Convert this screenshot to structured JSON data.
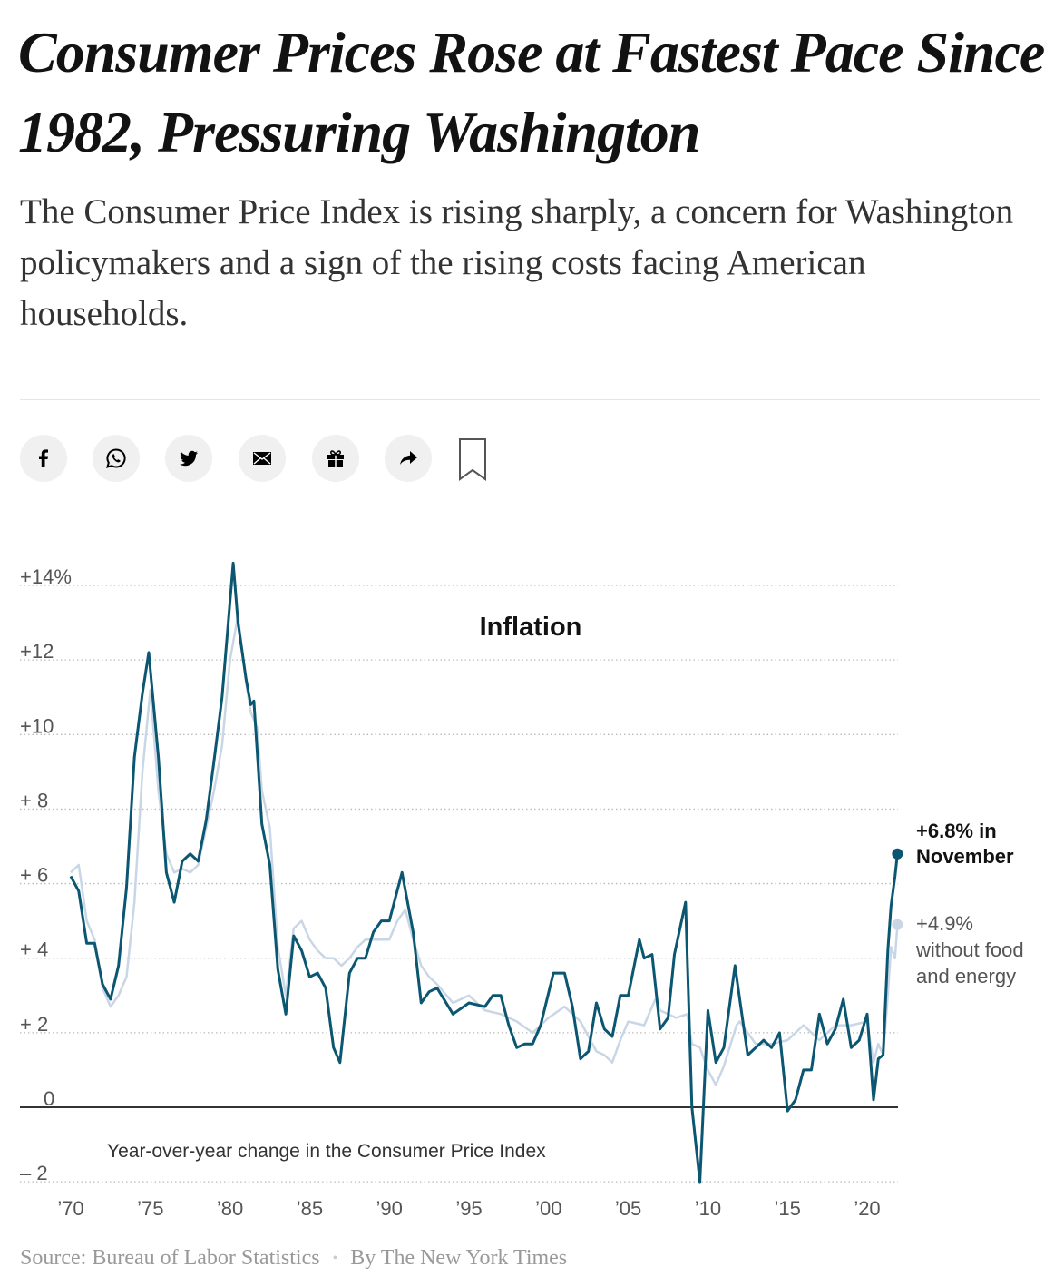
{
  "article": {
    "headline": "Consumer Prices Rose at Fastest Pace Since 1982, Pressuring Washington",
    "summary": "The Consumer Price Index is rising sharply, a concern for Washington policymakers and a sign of the rising costs facing American households."
  },
  "share_bar": {
    "icons": [
      "facebook-icon",
      "whatsapp-icon",
      "twitter-icon",
      "email-icon",
      "gift-icon",
      "share-icon",
      "bookmark-icon"
    ]
  },
  "chart_data": {
    "type": "line",
    "title": "Inflation",
    "annotation": "Year-over-year change in the Consumer Price Index",
    "ylim": [
      -2,
      14
    ],
    "xlim": [
      1970,
      2021.9
    ],
    "y_ticks": [
      {
        "value": 14,
        "label": "+14%"
      },
      {
        "value": 12,
        "label": "+12"
      },
      {
        "value": 10,
        "label": "+10"
      },
      {
        "value": 8,
        "label": "+ 8"
      },
      {
        "value": 6,
        "label": "+ 6"
      },
      {
        "value": 4,
        "label": "+ 4"
      },
      {
        "value": 2,
        "label": "+ 2"
      },
      {
        "value": 0,
        "label": "0"
      },
      {
        "value": -2,
        "label": "– 2"
      }
    ],
    "x_ticks": [
      {
        "value": 1970,
        "label": "’70"
      },
      {
        "value": 1975,
        "label": "’75"
      },
      {
        "value": 1980,
        "label": "’80"
      },
      {
        "value": 1985,
        "label": "’85"
      },
      {
        "value": 1990,
        "label": "’90"
      },
      {
        "value": 1995,
        "label": "’95"
      },
      {
        "value": 2000,
        "label": "’00"
      },
      {
        "value": 2005,
        "label": "’05"
      },
      {
        "value": 2010,
        "label": "’10"
      },
      {
        "value": 2015,
        "label": "’15"
      },
      {
        "value": 2020,
        "label": "’20"
      }
    ],
    "grid": "horizontal dotted",
    "colors": {
      "headline": "#0b5670",
      "core": "#c9d6e6",
      "grid": "#bbbbbb"
    },
    "series": [
      {
        "key": "headline",
        "label_value": "+6.8% in",
        "label_text": "November",
        "x": [
          1970,
          1970.5,
          1971,
          1971.5,
          1972,
          1972.5,
          1973,
          1973.5,
          1974,
          1974.5,
          1974.9,
          1975.5,
          1976,
          1976.5,
          1977,
          1977.5,
          1978,
          1978.5,
          1979,
          1979.5,
          1980.2,
          1980.5,
          1981,
          1981.3,
          1981.5,
          1982,
          1982.5,
          1983,
          1983.5,
          1984,
          1984.5,
          1985,
          1985.5,
          1986,
          1986.5,
          1986.9,
          1987.5,
          1988,
          1988.5,
          1989,
          1989.5,
          1990,
          1990.8,
          1991.5,
          1992,
          1992.5,
          1993,
          1994,
          1995,
          1996,
          1996.5,
          1997,
          1997.5,
          1998,
          1998.5,
          1999,
          1999.5,
          2000.3,
          2000.5,
          2001,
          2001.5,
          2002,
          2002.5,
          2003,
          2003.5,
          2004,
          2004.5,
          2005,
          2005.7,
          2006,
          2006.5,
          2007,
          2007.5,
          2007.9,
          2008.6,
          2009,
          2009.5,
          2010,
          2010.5,
          2011,
          2011.7,
          2012,
          2012.5,
          2013,
          2013.5,
          2014,
          2014.5,
          2015,
          2015.5,
          2016,
          2016.5,
          2017,
          2017.5,
          2018,
          2018.5,
          2019,
          2019.5,
          2020,
          2020.4,
          2020.7,
          2021,
          2021.3,
          2021.5,
          2021.75,
          2021.9
        ],
        "y": [
          6.2,
          5.8,
          4.4,
          4.4,
          3.3,
          2.9,
          3.8,
          5.9,
          9.4,
          11.1,
          12.2,
          9.4,
          6.3,
          5.5,
          6.6,
          6.8,
          6.6,
          7.7,
          9.3,
          11.0,
          14.6,
          13.0,
          11.5,
          10.8,
          10.9,
          7.6,
          6.5,
          3.7,
          2.5,
          4.6,
          4.2,
          3.5,
          3.6,
          3.2,
          1.6,
          1.2,
          3.6,
          4.0,
          4.0,
          4.7,
          5.0,
          5.0,
          6.3,
          4.7,
          2.8,
          3.1,
          3.2,
          2.5,
          2.8,
          2.7,
          3.0,
          3.0,
          2.2,
          1.6,
          1.7,
          1.7,
          2.2,
          3.6,
          3.6,
          3.6,
          2.7,
          1.3,
          1.5,
          2.8,
          2.1,
          1.9,
          3.0,
          3.0,
          4.5,
          4.0,
          4.1,
          2.1,
          2.4,
          4.1,
          5.5,
          0.0,
          -2.0,
          2.6,
          1.2,
          1.6,
          3.8,
          2.9,
          1.4,
          1.6,
          1.8,
          1.6,
          2.0,
          -0.1,
          0.2,
          1.0,
          1.0,
          2.5,
          1.7,
          2.1,
          2.9,
          1.6,
          1.8,
          2.5,
          0.2,
          1.3,
          1.4,
          4.2,
          5.4,
          6.2,
          6.8
        ]
      },
      {
        "key": "core",
        "label_value": "+4.9%",
        "label_text": "without food and energy",
        "x": [
          1970,
          1970.5,
          1971,
          1971.5,
          1972,
          1972.5,
          1973,
          1973.5,
          1974,
          1974.5,
          1975,
          1975.5,
          1976,
          1976.5,
          1977,
          1977.5,
          1978,
          1978.5,
          1979,
          1979.5,
          1980,
          1980.5,
          1981,
          1981.3,
          1981.7,
          1982,
          1982.5,
          1983,
          1983.5,
          1984,
          1984.5,
          1985,
          1985.5,
          1986,
          1986.5,
          1987,
          1987.5,
          1988,
          1988.5,
          1989,
          1989.5,
          1990,
          1990.5,
          1991,
          1991.5,
          1992,
          1992.5,
          1993,
          1994,
          1995,
          1996,
          1997,
          1998,
          1999,
          2000,
          2001,
          2002,
          2003,
          2003.5,
          2004,
          2004.5,
          2005,
          2006,
          2006.7,
          2007,
          2008,
          2008.7,
          2009,
          2009.5,
          2010,
          2010.5,
          2011,
          2011.8,
          2012,
          2013,
          2014,
          2015,
          2016,
          2017,
          2018,
          2019,
          2020,
          2020.4,
          2020.7,
          2021,
          2021.3,
          2021.5,
          2021.75,
          2021.9
        ],
        "y": [
          6.3,
          6.5,
          5.0,
          4.5,
          3.2,
          2.7,
          3.0,
          3.5,
          5.5,
          9.0,
          11.2,
          8.5,
          6.8,
          6.3,
          6.4,
          6.3,
          6.5,
          7.5,
          8.5,
          9.7,
          12.0,
          13.2,
          11.4,
          10.6,
          10.2,
          8.5,
          7.5,
          4.3,
          3.0,
          4.8,
          5.0,
          4.5,
          4.2,
          4.0,
          4.0,
          3.8,
          4.0,
          4.3,
          4.5,
          4.5,
          4.5,
          4.5,
          5.0,
          5.3,
          4.5,
          3.8,
          3.5,
          3.3,
          2.8,
          3.0,
          2.6,
          2.5,
          2.3,
          2.0,
          2.4,
          2.7,
          2.3,
          1.5,
          1.4,
          1.2,
          1.8,
          2.3,
          2.2,
          2.9,
          2.6,
          2.4,
          2.5,
          1.7,
          1.6,
          1.0,
          0.6,
          1.1,
          2.2,
          2.3,
          1.7,
          1.7,
          1.8,
          2.2,
          1.8,
          2.2,
          2.2,
          2.3,
          1.2,
          1.7,
          1.4,
          3.0,
          4.3,
          4.0,
          4.9
        ]
      }
    ]
  },
  "footer": {
    "source": "Source: Bureau of Labor Statistics",
    "separator": "•",
    "byline": "By The New York Times"
  }
}
